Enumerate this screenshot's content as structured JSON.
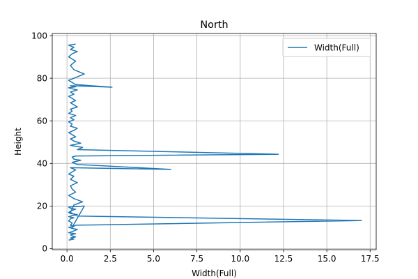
{
  "chart_data": {
    "type": "line",
    "title": "North",
    "xlabel": "Width(Full)",
    "ylabel": "Height",
    "xlim": [
      -0.85,
      17.85
    ],
    "ylim": [
      -0.5,
      101.0
    ],
    "xticks": [
      0.0,
      2.5,
      5.0,
      7.5,
      10.0,
      12.5,
      15.0,
      17.5
    ],
    "xtick_labels": [
      "0.0",
      "2.5",
      "5.0",
      "7.5",
      "10.0",
      "12.5",
      "15.0",
      "17.5"
    ],
    "yticks": [
      0,
      20,
      40,
      60,
      80,
      100
    ],
    "ytick_labels": [
      "0",
      "20",
      "40",
      "60",
      "80",
      "100"
    ],
    "grid": true,
    "legend_position": "top-right",
    "colors": {
      "series": "#1f77b4",
      "grid": "#b0b0b0",
      "axes": "#000000"
    },
    "series": [
      {
        "name": "Width(Full)",
        "x": [
          0.1,
          0.4,
          0.2,
          0.5,
          0.3,
          0.2,
          0.5,
          0.1,
          0.3,
          0.6,
          0.3,
          0.1,
          0.4,
          0.2,
          0.3,
          0.1,
          0.2,
          0.4,
          0.1,
          0.3,
          0.6,
          0.2,
          0.1,
          0.3,
          0.5,
          0.2,
          0.1,
          1.0,
          0.3,
          0.5,
          17.0,
          0.6,
          0.2,
          0.4,
          0.9,
          0.4,
          0.1,
          0.5,
          0.3,
          0.2,
          0.6,
          0.2,
          0.4,
          0.1,
          0.3,
          0.5,
          0.2,
          6.0,
          0.6,
          0.3,
          0.8,
          0.4,
          0.3,
          0.5,
          12.2,
          0.6,
          0.9,
          0.2,
          0.8,
          0.4,
          0.2,
          0.5,
          0.3,
          0.1,
          0.4,
          0.6,
          0.2,
          0.3,
          0.1,
          0.4,
          0.2,
          0.5,
          0.1,
          0.3,
          0.2,
          0.6,
          0.4,
          0.2,
          0.5,
          0.3,
          0.1,
          0.4,
          0.2,
          0.6,
          0.3,
          0.1,
          0.5,
          0.2,
          2.6,
          0.5,
          0.3,
          0.1,
          1.0,
          0.4,
          0.2,
          0.5,
          0.1,
          0.3,
          0.6,
          0.2,
          0.4,
          0.1,
          0.5
        ],
        "y": [
          4.0,
          4.5,
          5.0,
          5.5,
          6.0,
          6.5,
          7.0,
          7.5,
          8.0,
          9.0,
          9.5,
          10.0,
          10.5,
          11.0,
          12.0,
          13.0,
          14.0,
          14.5,
          15.0,
          15.5,
          16.0,
          16.5,
          17.0,
          18.0,
          18.5,
          19.0,
          19.5,
          20.0,
          10.0,
          11.0,
          13.2,
          15.3,
          17.0,
          20.5,
          22.0,
          23.5,
          25.0,
          26.5,
          28.0,
          29.5,
          31.0,
          32.5,
          34.0,
          35.0,
          36.0,
          37.0,
          38.0,
          37.2,
          39.5,
          40.5,
          41.5,
          42.0,
          43.0,
          43.5,
          44.3,
          46.5,
          47.5,
          48.5,
          49.5,
          50.5,
          51.5,
          52.5,
          53.5,
          54.5,
          55.5,
          56.5,
          57.5,
          58.5,
          59.5,
          60.5,
          61.5,
          62.5,
          63.5,
          64.5,
          65.5,
          66.5,
          67.5,
          68.5,
          69.5,
          70.5,
          71.5,
          72.5,
          73.5,
          74.5,
          75.0,
          75.5,
          76.0,
          76.5,
          75.8,
          77.0,
          78.0,
          79.0,
          82.0,
          84.0,
          86.0,
          88.0,
          90.0,
          91.5,
          92.5,
          93.5,
          94.5,
          95.5,
          96.0
        ]
      }
    ]
  }
}
